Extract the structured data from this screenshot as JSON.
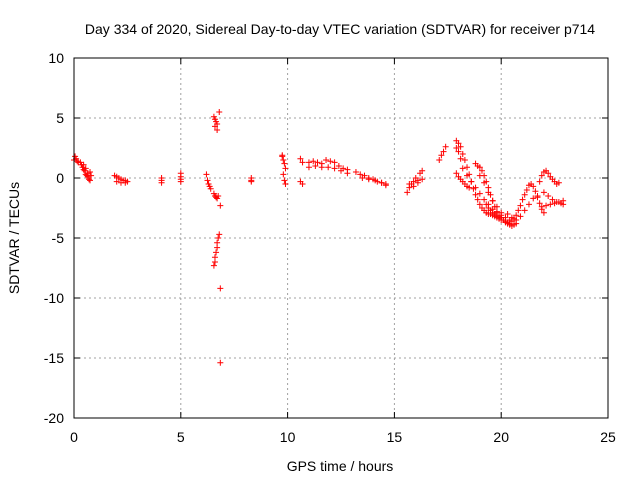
{
  "chart_data": {
    "type": "scatter",
    "title": "Day 334 of 2020, Sidereal Day-to-day VTEC variation (SDTVAR) for receiver p714",
    "xlabel": "GPS time / hours",
    "ylabel": "SDTVAR / TECUs",
    "xlim": [
      0,
      25
    ],
    "ylim": [
      -20,
      10
    ],
    "xticks": [
      0,
      5,
      10,
      15,
      20,
      25
    ],
    "yticks": [
      -20,
      -15,
      -10,
      -5,
      0,
      5,
      10
    ],
    "xtick_labels": [
      "0",
      "5",
      "10",
      "15",
      "20",
      "25"
    ],
    "ytick_labels": [
      "-20",
      "-15",
      "-10",
      "-5",
      "0",
      "5",
      "10"
    ],
    "grid": true,
    "marker": "+",
    "color": "#ff0000",
    "segments": [
      {
        "x": [
          0.0,
          0.05,
          0.1,
          0.15,
          0.2
        ],
        "y": [
          1.5,
          1.8,
          1.6,
          1.4,
          1.3
        ]
      },
      {
        "x": [
          0.3,
          0.35,
          0.4,
          0.45,
          0.5,
          0.55,
          0.6,
          0.65,
          0.7,
          0.75,
          0.8
        ],
        "y": [
          1.3,
          1.1,
          0.9,
          0.7,
          0.6,
          0.3,
          0.2,
          0.1,
          -0.1,
          0.5,
          0.2
        ]
      },
      {
        "x": [
          0.45,
          0.55,
          0.65,
          0.75
        ],
        "y": [
          1.1,
          0.8,
          0.4,
          -0.2
        ]
      },
      {
        "x": [
          1.9,
          2.0,
          2.1,
          2.2,
          2.3,
          2.4,
          2.5
        ],
        "y": [
          0.2,
          0.1,
          0.0,
          -0.1,
          -0.2,
          -0.2,
          -0.3
        ]
      },
      {
        "x": [
          2.0,
          2.2,
          2.4
        ],
        "y": [
          -0.3,
          -0.4,
          -0.4
        ]
      },
      {
        "x": [
          4.1,
          4.1,
          4.1
        ],
        "y": [
          0.0,
          -0.2,
          -0.4
        ]
      },
      {
        "x": [
          5.0,
          5.0,
          5.0,
          5.0
        ],
        "y": [
          0.4,
          0.1,
          -0.1,
          -0.3
        ]
      },
      {
        "x": [
          6.2,
          6.25,
          6.3,
          6.35,
          6.4
        ],
        "y": [
          0.3,
          -0.2,
          -0.5,
          -0.7,
          -0.9
        ]
      },
      {
        "x": [
          6.55,
          6.6,
          6.65,
          6.7,
          6.6,
          6.7
        ],
        "y": [
          5.1,
          4.9,
          4.7,
          4.5,
          4.3,
          4.0
        ]
      },
      {
        "x": [
          6.8
        ],
        "y": [
          5.5
        ]
      },
      {
        "x": [
          6.55,
          6.6,
          6.65,
          6.7,
          6.75
        ],
        "y": [
          -1.3,
          -1.5,
          -1.6,
          -1.7,
          -1.5
        ]
      },
      {
        "x": [
          6.85
        ],
        "y": [
          -2.3
        ]
      },
      {
        "x": [
          6.55,
          6.6,
          6.6,
          6.65,
          6.7,
          6.7,
          6.75,
          6.8
        ],
        "y": [
          -7.3,
          -7.0,
          -6.6,
          -6.2,
          -5.8,
          -5.4,
          -5.0,
          -4.7
        ]
      },
      {
        "x": [
          6.85
        ],
        "y": [
          -9.2
        ]
      },
      {
        "x": [
          6.85
        ],
        "y": [
          -15.4
        ]
      },
      {
        "x": [
          8.3,
          8.3,
          8.3
        ],
        "y": [
          0.0,
          -0.2,
          -0.3
        ]
      },
      {
        "x": [
          9.75,
          9.8,
          9.85,
          9.9,
          9.8,
          9.85,
          9.9,
          9.75
        ],
        "y": [
          1.8,
          1.5,
          1.2,
          0.8,
          0.3,
          -0.2,
          -0.5,
          1.9
        ]
      },
      {
        "x": [
          10.6,
          10.7,
          10.6,
          10.7
        ],
        "y": [
          1.6,
          1.3,
          -0.3,
          -0.5
        ]
      },
      {
        "x": [
          11.0,
          11.2,
          11.4,
          11.6,
          11.8,
          12.0,
          12.2,
          12.4,
          12.6,
          12.8
        ],
        "y": [
          1.3,
          1.4,
          1.3,
          1.2,
          1.5,
          1.4,
          1.3,
          1.0,
          0.8,
          0.7
        ]
      },
      {
        "x": [
          11.0,
          11.3,
          11.6,
          11.9,
          12.2,
          12.5,
          12.8
        ],
        "y": [
          0.9,
          1.0,
          0.9,
          0.9,
          0.8,
          0.6,
          0.4
        ]
      },
      {
        "x": [
          13.2,
          13.4,
          13.6,
          13.8,
          14.0,
          14.2,
          14.4,
          14.6
        ],
        "y": [
          0.5,
          0.3,
          0.2,
          0.0,
          -0.1,
          -0.3,
          -0.4,
          -0.6
        ]
      },
      {
        "x": [
          13.5,
          13.8,
          14.1,
          14.4,
          14.6
        ],
        "y": [
          0.0,
          -0.1,
          -0.2,
          -0.4,
          -0.5
        ]
      },
      {
        "x": [
          15.6,
          15.7,
          15.8,
          15.9,
          16.0,
          16.1,
          16.2,
          16.3
        ],
        "y": [
          -1.2,
          -0.8,
          -0.5,
          -0.3,
          0.0,
          -0.2,
          0.4,
          0.6
        ]
      },
      {
        "x": [
          15.7,
          15.9,
          16.1,
          16.3
        ],
        "y": [
          -0.5,
          -0.7,
          -0.4,
          -0.1
        ]
      },
      {
        "x": [
          17.1,
          17.2,
          17.3,
          17.4
        ],
        "y": [
          1.5,
          1.9,
          2.2,
          2.6
        ]
      },
      {
        "x": [
          17.9,
          18.0,
          18.1,
          18.2,
          18.3,
          18.4,
          18.5,
          18.6,
          18.7,
          18.8,
          18.9,
          19.0,
          19.1,
          19.2,
          19.3,
          19.4,
          19.5,
          19.6,
          19.7,
          19.8,
          19.9,
          20.0,
          20.1,
          20.2,
          20.3,
          20.4
        ],
        "y": [
          3.1,
          2.9,
          2.6,
          2.0,
          1.5,
          0.9,
          0.3,
          -0.3,
          -0.9,
          -1.4,
          -1.8,
          -2.2,
          -2.5,
          -2.7,
          -2.9,
          -3.0,
          -3.0,
          -3.1,
          -3.2,
          -3.3,
          -3.4,
          -3.5,
          -3.5,
          -3.6,
          -3.7,
          -3.8
        ]
      },
      {
        "x": [
          17.9,
          18.0,
          18.1,
          18.2,
          18.4,
          18.6,
          18.8,
          19.0,
          19.2,
          19.4,
          19.6,
          19.8,
          20.0,
          20.2,
          20.4
        ],
        "y": [
          2.5,
          2.2,
          1.6,
          0.8,
          0.2,
          -0.3,
          -0.8,
          -1.3,
          -1.8,
          -2.2,
          -2.6,
          -2.9,
          -3.1,
          -3.3,
          -3.5
        ]
      },
      {
        "x": [
          17.9,
          18.0,
          18.1,
          18.2,
          18.3,
          18.4,
          18.5
        ],
        "y": [
          0.4,
          0.1,
          -0.1,
          -0.3,
          -0.5,
          -0.7,
          -0.8
        ]
      },
      {
        "x": [
          18.8,
          18.9,
          19.0,
          19.1,
          19.2,
          19.3,
          19.4,
          19.5,
          19.6,
          19.7,
          19.8
        ],
        "y": [
          1.2,
          1.0,
          0.9,
          0.6,
          0.2,
          -0.3,
          -0.8,
          -1.4,
          -1.9,
          -2.4,
          -2.8
        ]
      },
      {
        "x": [
          19.0,
          19.2,
          19.4,
          19.6,
          19.8,
          20.0
        ],
        "y": [
          0.2,
          -0.4,
          -1.2,
          -1.9,
          -2.4,
          -2.9
        ]
      },
      {
        "x": [
          19.3,
          19.4,
          19.5,
          19.6,
          19.7,
          19.8,
          19.9,
          20.0,
          20.1,
          20.2,
          20.3,
          20.4,
          20.5,
          20.6,
          20.7
        ],
        "y": [
          -2.2,
          -2.5,
          -2.7,
          -2.9,
          -3.0,
          -3.1,
          -3.2,
          -3.3,
          -3.5,
          -3.7,
          -3.8,
          -3.9,
          -4.0,
          -3.9,
          -3.8
        ]
      },
      {
        "x": [
          20.5,
          20.6,
          20.7,
          20.8,
          20.9,
          21.0,
          21.1,
          21.2,
          21.3,
          21.4,
          21.5,
          21.6,
          21.7,
          21.8,
          21.9,
          22.0
        ],
        "y": [
          -3.6,
          -3.4,
          -3.1,
          -2.7,
          -2.3,
          -1.8,
          -1.4,
          -1.0,
          -0.6,
          -0.5,
          -0.7,
          -1.1,
          -1.6,
          -2.1,
          -2.6,
          -2.9
        ]
      },
      {
        "x": [
          20.3,
          20.5,
          20.7,
          20.9,
          21.1,
          21.3,
          21.5,
          21.7
        ],
        "y": [
          -3.0,
          -3.3,
          -3.5,
          -3.2,
          -2.7,
          -2.2,
          -1.7,
          -1.5
        ]
      },
      {
        "x": [
          21.8,
          21.9,
          22.0,
          22.1,
          22.2,
          22.3,
          22.4,
          22.5,
          22.6,
          22.7
        ],
        "y": [
          -0.3,
          0.2,
          0.5,
          0.6,
          0.4,
          0.1,
          -0.1,
          -0.3,
          -0.5,
          -0.4
        ]
      },
      {
        "x": [
          22.0,
          22.2,
          22.4,
          22.6,
          22.8,
          22.9
        ],
        "y": [
          -1.2,
          -1.5,
          -1.8,
          -2.0,
          -2.1,
          -2.2
        ]
      },
      {
        "x": [
          21.9,
          22.1,
          22.3,
          22.5,
          22.7,
          22.9
        ],
        "y": [
          -2.4,
          -2.3,
          -2.2,
          -2.1,
          -2.0,
          -1.9
        ]
      }
    ]
  }
}
